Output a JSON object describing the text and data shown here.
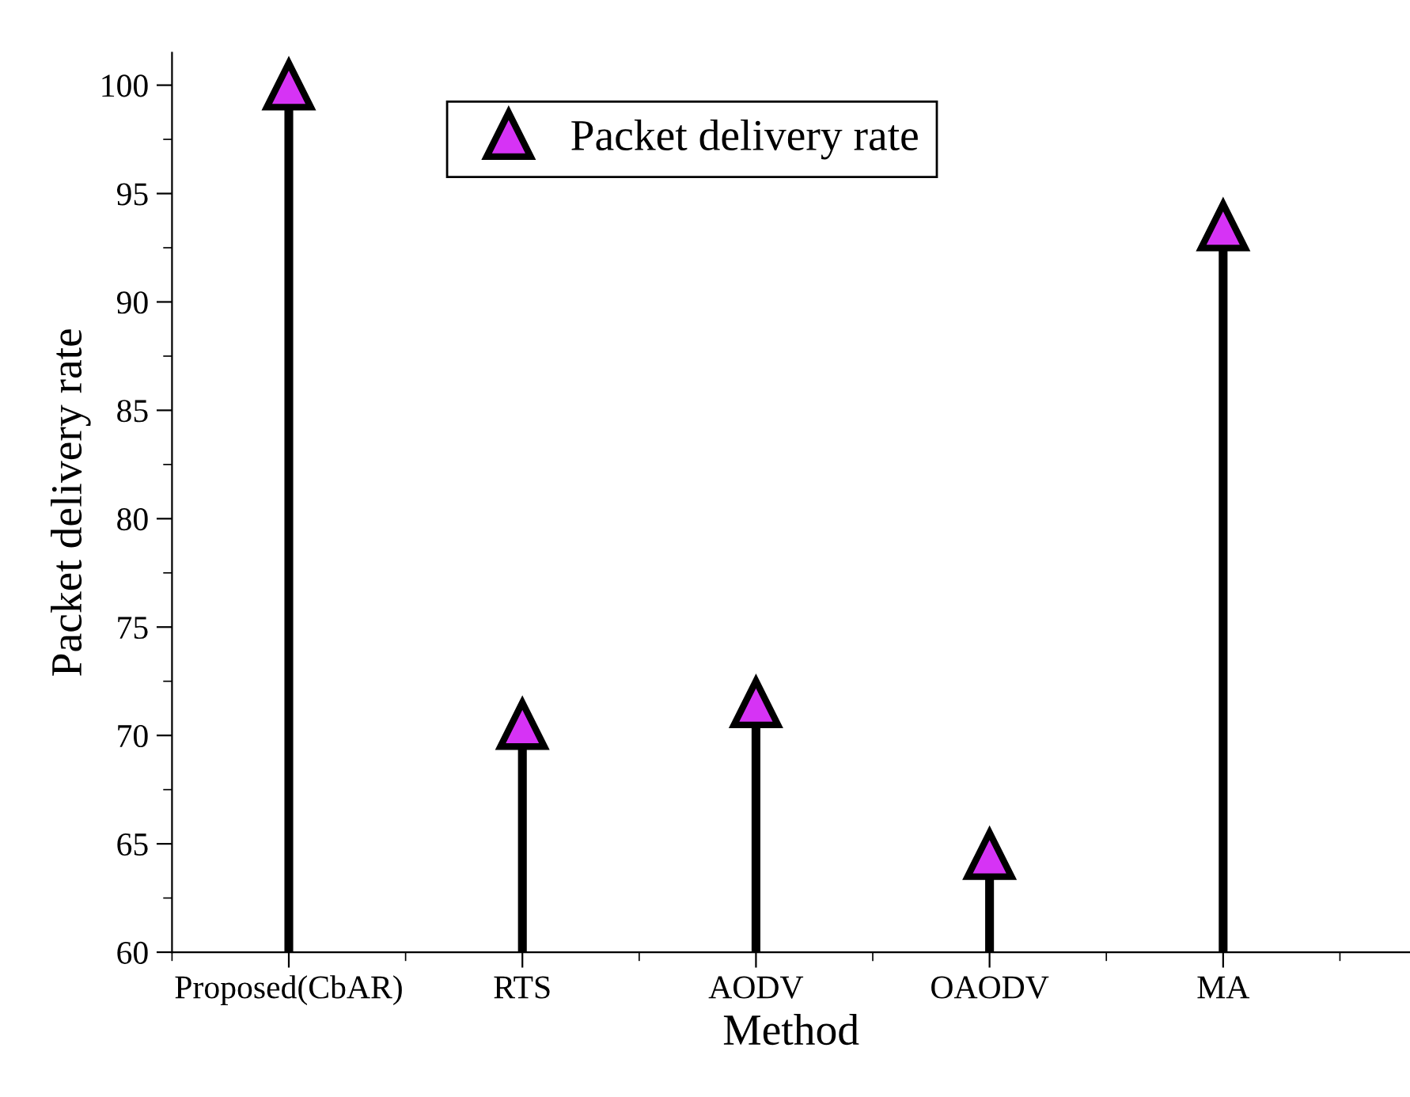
{
  "chart_data": {
    "type": "lollipop",
    "xlabel": "Method",
    "ylabel": "Packet delivery rate",
    "categories": [
      "Proposed(CbAR)",
      "RTS",
      "AODV",
      "OAODV",
      "MA"
    ],
    "series": [
      {
        "name": "Packet delivery rate",
        "color": "#d633f5",
        "values": [
          100,
          70.5,
          71.5,
          64.5,
          93.5
        ]
      }
    ],
    "ylim": [
      60,
      101.5
    ],
    "yticks": [
      60,
      65,
      70,
      75,
      80,
      85,
      90,
      95,
      100
    ],
    "marker": "triangle",
    "legend": "top"
  }
}
